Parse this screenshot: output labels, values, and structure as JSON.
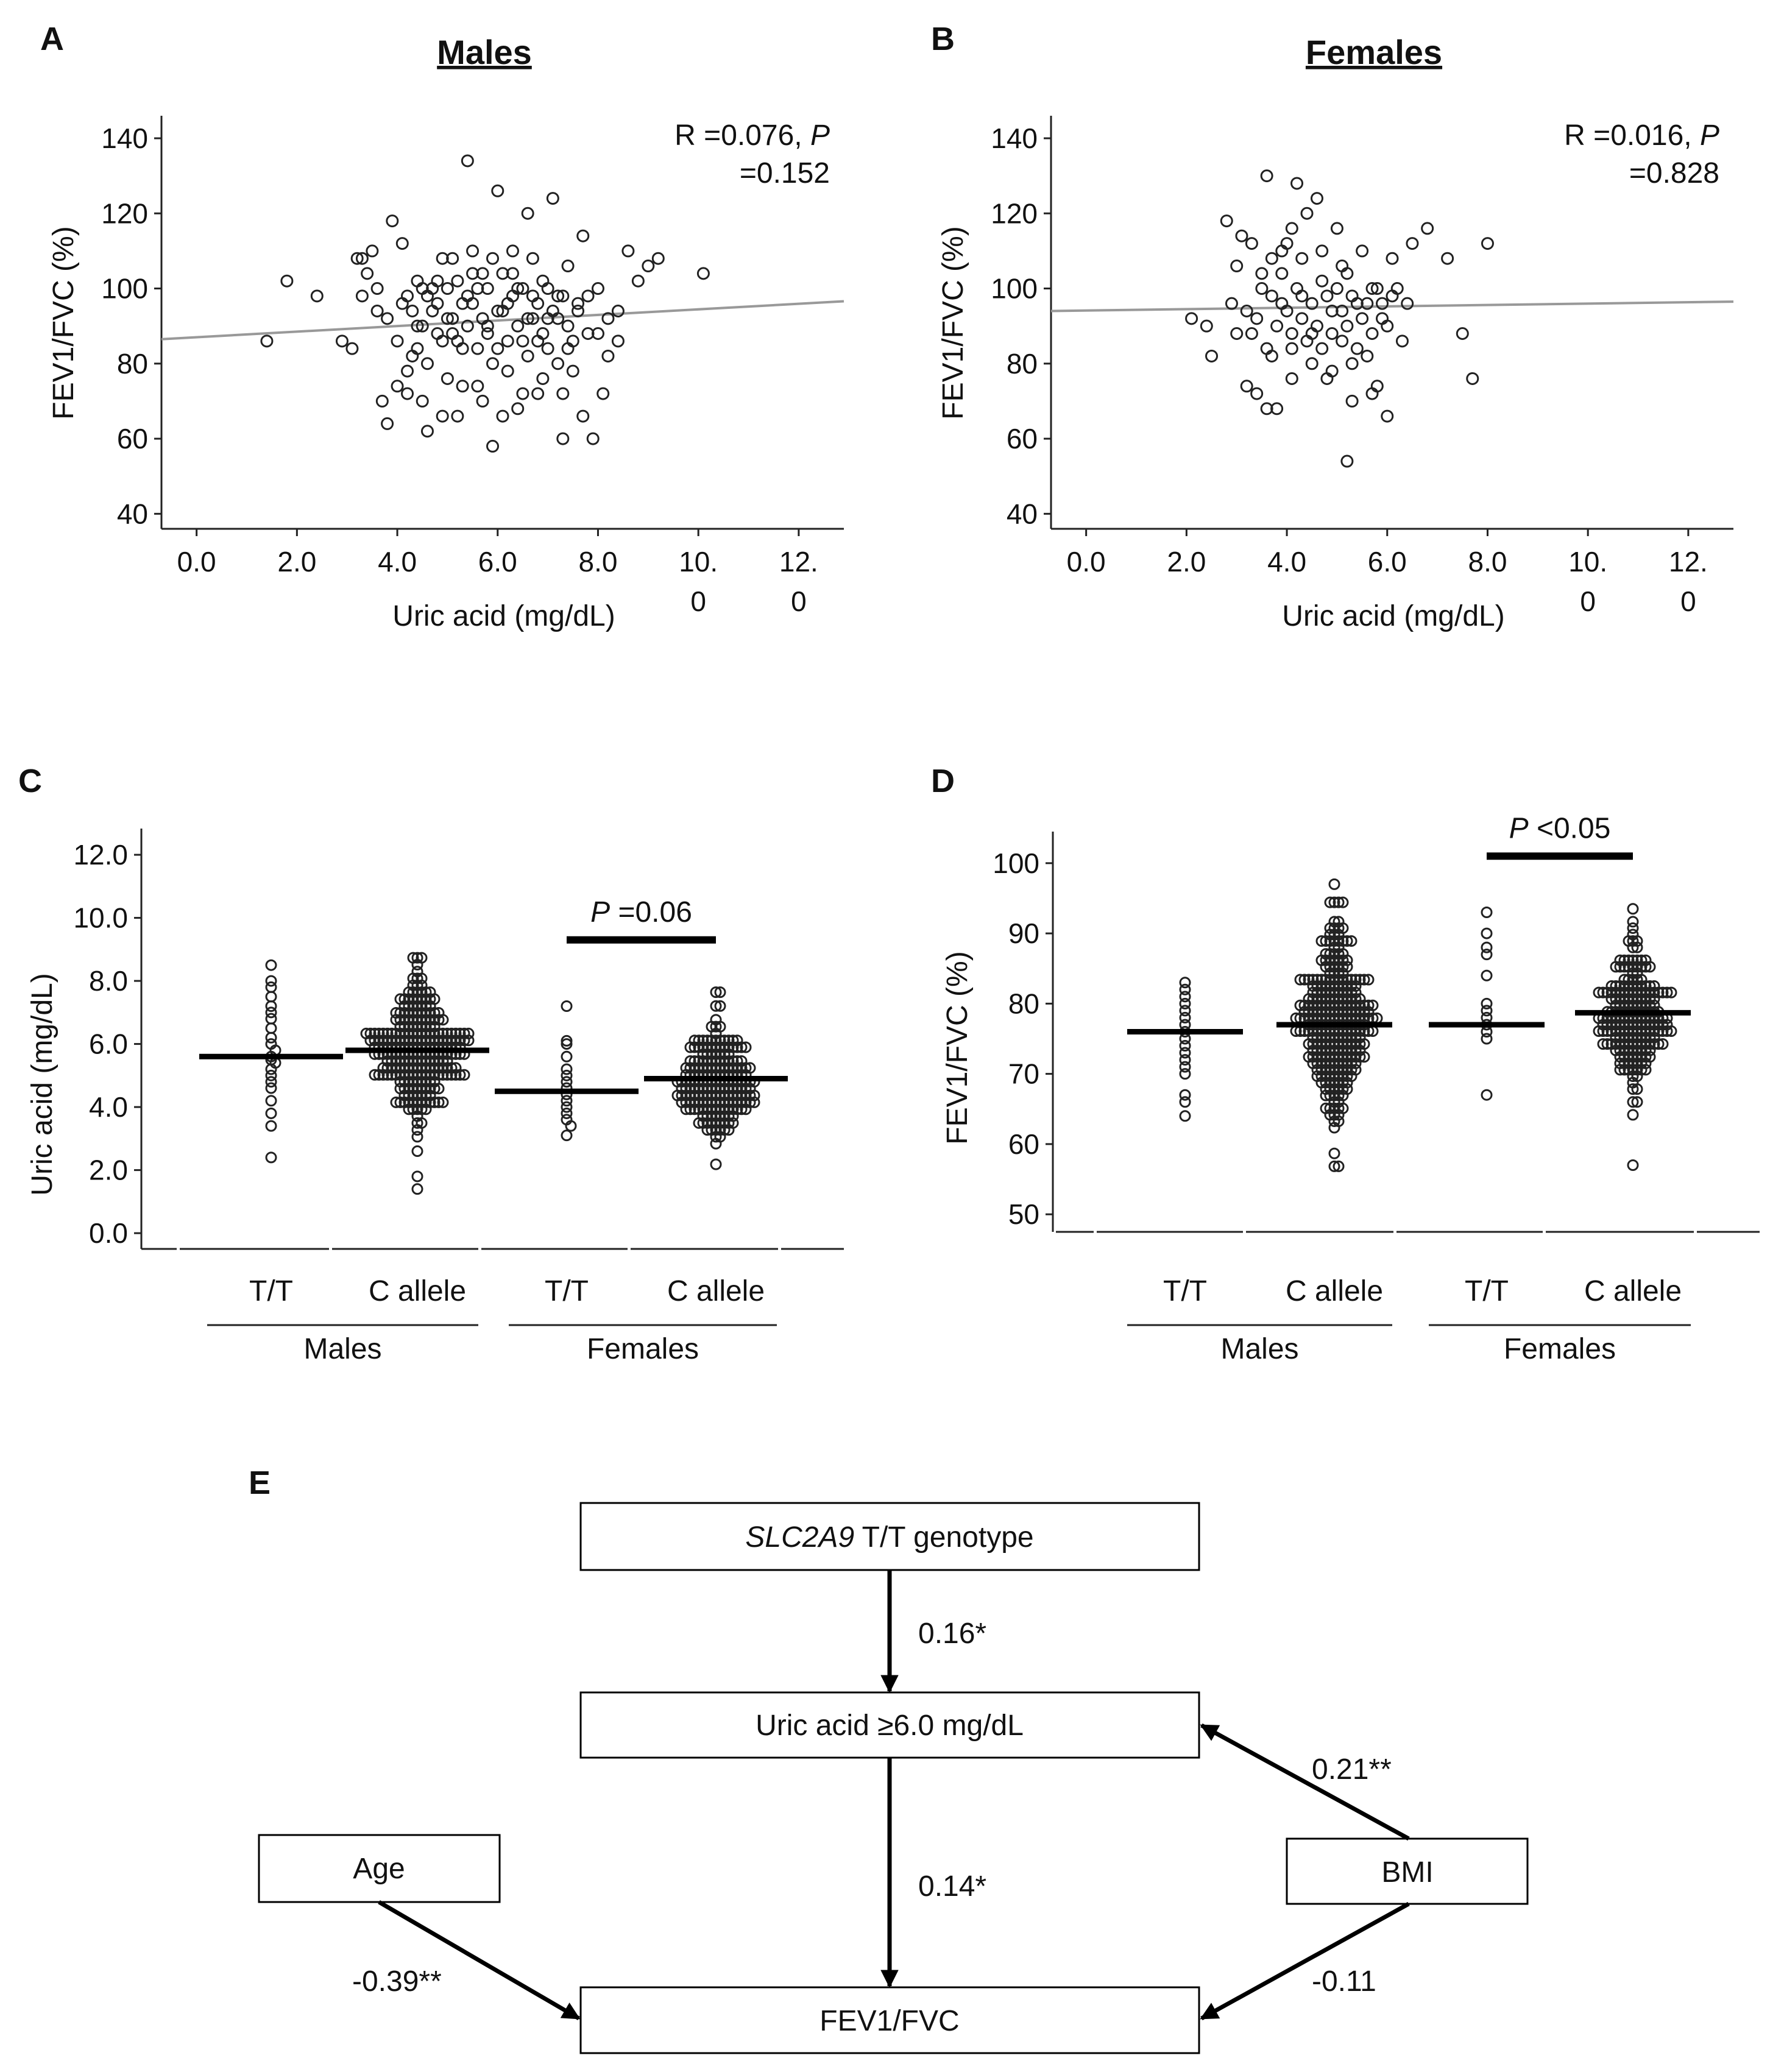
{
  "chart_data": [
    {
      "panel": "A",
      "type": "scatter",
      "title": "Males",
      "xlabel": "Uric acid (mg/dL)",
      "ylabel": "FEV1/FVC (%)",
      "xlim": [
        -0.7,
        12.9
      ],
      "ylim": [
        36,
        146
      ],
      "xticks": [
        {
          "value": 0,
          "label": "0.0"
        },
        {
          "value": 2,
          "label": "2.0"
        },
        {
          "value": 4,
          "label": "4.0"
        },
        {
          "value": 6,
          "label": "6.0"
        },
        {
          "value": 8,
          "label": "8.0"
        },
        {
          "value": 10,
          "label": "10.",
          "label2": "0"
        },
        {
          "value": 12,
          "label": "12.",
          "label2": "0"
        }
      ],
      "yticks": [
        40,
        60,
        80,
        100,
        120,
        140
      ],
      "annotation": {
        "prefix": "R =0.076, ",
        "p": "P",
        "line2": "=0.152"
      },
      "trend": {
        "x1": -0.7,
        "y1": 86.5,
        "x2": 12.9,
        "y2": 96.6
      },
      "points": [
        [
          1.4,
          86
        ],
        [
          1.8,
          102
        ],
        [
          2.4,
          98
        ],
        [
          2.9,
          86
        ],
        [
          3.1,
          84
        ],
        [
          3.3,
          108
        ],
        [
          3.4,
          104
        ],
        [
          3.5,
          110
        ],
        [
          3.6,
          94
        ],
        [
          3.7,
          70
        ],
        [
          3.8,
          64
        ],
        [
          3.9,
          118
        ],
        [
          4.0,
          74
        ],
        [
          4.1,
          112
        ],
        [
          4.2,
          72
        ],
        [
          4.3,
          82
        ],
        [
          4.4,
          102
        ],
        [
          4.5,
          90
        ],
        [
          4.6,
          62
        ],
        [
          4.7,
          100
        ],
        [
          4.8,
          88
        ],
        [
          4.9,
          108
        ],
        [
          5.0,
          76
        ],
        [
          5.1,
          92
        ],
        [
          5.2,
          66
        ],
        [
          5.3,
          84
        ],
        [
          5.4,
          134
        ],
        [
          5.5,
          96
        ],
        [
          5.6,
          74
        ],
        [
          5.7,
          104
        ],
        [
          5.8,
          88
        ],
        [
          5.9,
          58
        ],
        [
          6.0,
          126
        ],
        [
          6.1,
          94
        ],
        [
          6.2,
          78
        ],
        [
          6.3,
          110
        ],
        [
          6.4,
          68
        ],
        [
          6.5,
          86
        ],
        [
          6.6,
          120
        ],
        [
          6.7,
          98
        ],
        [
          6.8,
          72
        ],
        [
          6.9,
          102
        ],
        [
          7.0,
          84
        ],
        [
          7.1,
          124
        ],
        [
          7.2,
          92
        ],
        [
          7.3,
          60
        ],
        [
          7.4,
          106
        ],
        [
          7.5,
          78
        ],
        [
          7.6,
          96
        ],
        [
          7.7,
          114
        ],
        [
          7.8,
          88
        ],
        [
          7.9,
          60
        ],
        [
          8.0,
          100
        ],
        [
          8.2,
          82
        ],
        [
          8.4,
          94
        ],
        [
          8.6,
          110
        ],
        [
          8.8,
          102
        ],
        [
          9.0,
          106
        ],
        [
          9.2,
          108
        ],
        [
          10.1,
          104
        ],
        [
          3.2,
          108
        ],
        [
          3.3,
          98
        ],
        [
          3.6,
          100
        ],
        [
          3.8,
          92
        ],
        [
          4.0,
          86
        ],
        [
          4.1,
          96
        ],
        [
          4.3,
          94
        ],
        [
          4.4,
          90
        ],
        [
          4.5,
          100
        ],
        [
          4.6,
          80
        ],
        [
          4.7,
          94
        ],
        [
          4.8,
          96
        ],
        [
          4.9,
          86
        ],
        [
          5.0,
          100
        ],
        [
          5.1,
          88
        ],
        [
          5.2,
          102
        ],
        [
          5.3,
          96
        ],
        [
          5.4,
          90
        ],
        [
          5.5,
          104
        ],
        [
          5.6,
          84
        ],
        [
          5.7,
          92
        ],
        [
          5.8,
          100
        ],
        [
          5.9,
          80
        ],
        [
          6.0,
          94
        ],
        [
          6.1,
          104
        ],
        [
          6.2,
          86
        ],
        [
          6.3,
          98
        ],
        [
          6.4,
          90
        ],
        [
          6.5,
          100
        ],
        [
          6.6,
          82
        ],
        [
          6.7,
          92
        ],
        [
          6.8,
          96
        ],
        [
          6.9,
          88
        ],
        [
          7.0,
          100
        ],
        [
          7.1,
          94
        ],
        [
          7.2,
          80
        ],
        [
          7.3,
          98
        ],
        [
          7.4,
          90
        ],
        [
          7.5,
          86
        ],
        [
          7.6,
          94
        ],
        [
          7.8,
          98
        ],
        [
          8.0,
          88
        ],
        [
          8.2,
          92
        ],
        [
          8.4,
          86
        ],
        [
          4.2,
          98
        ],
        [
          4.4,
          84
        ],
        [
          4.6,
          98
        ],
        [
          4.8,
          102
        ],
        [
          5.0,
          92
        ],
        [
          5.2,
          86
        ],
        [
          5.4,
          98
        ],
        [
          5.6,
          100
        ],
        [
          5.8,
          90
        ],
        [
          6.0,
          84
        ],
        [
          6.2,
          96
        ],
        [
          6.4,
          100
        ],
        [
          6.6,
          92
        ],
        [
          6.8,
          86
        ],
        [
          7.0,
          92
        ],
        [
          7.2,
          98
        ],
        [
          7.4,
          84
        ],
        [
          5.1,
          108
        ],
        [
          5.5,
          110
        ],
        [
          5.9,
          108
        ],
        [
          6.3,
          104
        ],
        [
          6.7,
          108
        ],
        [
          5.3,
          74
        ],
        [
          5.7,
          70
        ],
        [
          6.1,
          66
        ],
        [
          6.5,
          72
        ],
        [
          6.9,
          76
        ],
        [
          7.3,
          72
        ],
        [
          4.9,
          66
        ],
        [
          4.5,
          70
        ],
        [
          4.2,
          78
        ],
        [
          7.7,
          66
        ],
        [
          8.1,
          72
        ]
      ]
    },
    {
      "panel": "B",
      "type": "scatter",
      "title": "Females",
      "xlabel": "Uric acid (mg/dL)",
      "ylabel": "FEV1/FVC (%)",
      "xlim": [
        -0.7,
        12.9
      ],
      "ylim": [
        36,
        146
      ],
      "xticks": [
        {
          "value": 0,
          "label": "0.0"
        },
        {
          "value": 2,
          "label": "2.0"
        },
        {
          "value": 4,
          "label": "4.0"
        },
        {
          "value": 6,
          "label": "6.0"
        },
        {
          "value": 8,
          "label": "8.0"
        },
        {
          "value": 10,
          "label": "10.",
          "label2": "0"
        },
        {
          "value": 12,
          "label": "12.",
          "label2": "0"
        }
      ],
      "yticks": [
        40,
        60,
        80,
        100,
        120,
        140
      ],
      "annotation": {
        "prefix": "R =0.016, ",
        "p": "P",
        "line2": "=0.828"
      },
      "trend": {
        "x1": -0.7,
        "y1": 94.0,
        "x2": 12.9,
        "y2": 96.5
      },
      "points": [
        [
          2.1,
          92
        ],
        [
          2.4,
          90
        ],
        [
          2.5,
          82
        ],
        [
          2.8,
          118
        ],
        [
          2.9,
          96
        ],
        [
          3.0,
          106
        ],
        [
          3.1,
          114
        ],
        [
          3.2,
          74
        ],
        [
          3.3,
          88
        ],
        [
          3.4,
          72
        ],
        [
          3.5,
          100
        ],
        [
          3.6,
          130
        ],
        [
          3.7,
          108
        ],
        [
          3.8,
          68
        ],
        [
          3.9,
          96
        ],
        [
          4.0,
          112
        ],
        [
          4.1,
          84
        ],
        [
          4.2,
          128
        ],
        [
          4.3,
          98
        ],
        [
          4.4,
          120
        ],
        [
          4.5,
          88
        ],
        [
          4.6,
          124
        ],
        [
          4.7,
          102
        ],
        [
          4.8,
          76
        ],
        [
          4.9,
          94
        ],
        [
          5.0,
          116
        ],
        [
          5.1,
          86
        ],
        [
          5.2,
          104
        ],
        [
          5.3,
          70
        ],
        [
          5.4,
          96
        ],
        [
          5.5,
          110
        ],
        [
          5.6,
          82
        ],
        [
          5.7,
          100
        ],
        [
          5.8,
          74
        ],
        [
          5.9,
          92
        ],
        [
          6.0,
          66
        ],
        [
          6.1,
          98
        ],
        [
          6.3,
          86
        ],
        [
          6.5,
          112
        ],
        [
          6.8,
          116
        ],
        [
          7.2,
          108
        ],
        [
          7.5,
          88
        ],
        [
          7.7,
          76
        ],
        [
          8.0,
          112
        ],
        [
          5.2,
          54
        ],
        [
          3.0,
          88
        ],
        [
          3.2,
          94
        ],
        [
          3.4,
          92
        ],
        [
          3.6,
          84
        ],
        [
          3.7,
          98
        ],
        [
          3.8,
          90
        ],
        [
          3.9,
          104
        ],
        [
          4.0,
          94
        ],
        [
          4.1,
          88
        ],
        [
          4.2,
          100
        ],
        [
          4.3,
          92
        ],
        [
          4.4,
          86
        ],
        [
          4.5,
          96
        ],
        [
          4.6,
          90
        ],
        [
          4.7,
          84
        ],
        [
          4.8,
          98
        ],
        [
          4.9,
          88
        ],
        [
          5.0,
          100
        ],
        [
          5.1,
          94
        ],
        [
          5.2,
          90
        ],
        [
          5.3,
          98
        ],
        [
          5.4,
          84
        ],
        [
          5.5,
          92
        ],
        [
          5.6,
          96
        ],
        [
          5.7,
          88
        ],
        [
          5.8,
          100
        ],
        [
          5.9,
          96
        ],
        [
          6.0,
          90
        ],
        [
          6.2,
          100
        ],
        [
          6.4,
          96
        ],
        [
          3.5,
          104
        ],
        [
          3.9,
          110
        ],
        [
          4.3,
          108
        ],
        [
          4.7,
          110
        ],
        [
          5.1,
          106
        ],
        [
          3.3,
          112
        ],
        [
          4.1,
          116
        ],
        [
          4.5,
          80
        ],
        [
          4.9,
          78
        ],
        [
          5.3,
          80
        ],
        [
          3.7,
          82
        ],
        [
          4.1,
          76
        ],
        [
          5.7,
          72
        ],
        [
          3.6,
          68
        ],
        [
          6.1,
          108
        ]
      ]
    },
    {
      "panel": "C",
      "type": "scatter",
      "xlabel": "",
      "ylabel": "Uric acid (mg/dL)",
      "ylim": [
        -0.5,
        12.6
      ],
      "yticks": [
        "0.0",
        "2.0",
        "4.0",
        "6.0",
        "8.0",
        "10.0",
        "12.0"
      ],
      "categories": [
        "T/T",
        "C allele",
        "T/T",
        "C allele"
      ],
      "groups": [
        "Males",
        "Females"
      ],
      "means": [
        5.6,
        5.8,
        4.5,
        4.9
      ],
      "significance": {
        "between": [
          2,
          3
        ],
        "y": 9.3,
        "p": "P",
        "text": " =0.06"
      },
      "series": [
        {
          "category": 0,
          "values": [
            8.5,
            8.0,
            7.8,
            7.5,
            7.2,
            7.0,
            6.8,
            6.5,
            6.2,
            6.0,
            5.8,
            5.6,
            5.5,
            5.4,
            5.2,
            5.0,
            4.8,
            4.6,
            4.2,
            3.8,
            3.4,
            2.4
          ],
          "spread": 16
        },
        {
          "category": 1,
          "min": 2.8,
          "max": 10.0,
          "center": 5.9,
          "sd": 1.05,
          "n": 260,
          "outliers": [
            1.4,
            1.8,
            2.6
          ],
          "spread": 34
        },
        {
          "category": 2,
          "values": [
            7.2,
            6.1,
            6.0,
            5.6,
            5.2,
            5.0,
            4.8,
            4.6,
            4.4,
            4.2,
            4.0,
            3.8,
            3.6,
            3.4,
            3.1
          ],
          "spread": 14
        },
        {
          "category": 3,
          "min": 2.1,
          "max": 8.0,
          "center": 4.9,
          "sd": 0.95,
          "n": 200,
          "outliers": [],
          "spread": 30
        }
      ]
    },
    {
      "panel": "D",
      "type": "scatter",
      "xlabel": "",
      "ylabel": "FEV1/FVC (%)",
      "ylim": [
        47.5,
        102.5
      ],
      "yticks": [
        "50",
        "60",
        "70",
        "80",
        "90",
        "100"
      ],
      "categories": [
        "T/T",
        "C allele",
        "T/T",
        "C allele"
      ],
      "groups": [
        "Males",
        "Females"
      ],
      "means": [
        76,
        77,
        77,
        78.7
      ],
      "significance": {
        "between": [
          2,
          3
        ],
        "y": 101,
        "p": "P",
        "text": " <0.05"
      },
      "series": [
        {
          "category": 0,
          "values": [
            83,
            82,
            81,
            80,
            79,
            78,
            77,
            76,
            75,
            74,
            73,
            72,
            71,
            70,
            67,
            66,
            64
          ],
          "spread": 16
        },
        {
          "category": 1,
          "min": 57,
          "max": 94,
          "center": 77,
          "sd": 6.5,
          "n": 300,
          "outliers": [
            97
          ],
          "spread": 34
        },
        {
          "category": 2,
          "values": [
            93,
            90,
            88,
            87,
            84,
            80,
            79,
            78,
            77,
            76,
            75,
            67
          ],
          "spread": 14
        },
        {
          "category": 3,
          "min": 63,
          "max": 95,
          "center": 78.5,
          "sd": 5.5,
          "n": 210,
          "outliers": [
            57
          ],
          "spread": 30
        }
      ]
    }
  ],
  "diagram": {
    "panel": "E",
    "nodes": {
      "genotype": {
        "italic": "SLC2A9",
        "text": " T/T genotype"
      },
      "uric": {
        "text": "Uric acid ≥6.0 mg/dL"
      },
      "age": {
        "text": "Age"
      },
      "bmi": {
        "text": "BMI"
      },
      "fev": {
        "text": "FEV1/FVC"
      }
    },
    "edges": [
      {
        "from": "genotype",
        "to": "uric",
        "label": "0.16*"
      },
      {
        "from": "uric",
        "to": "fev",
        "label": "0.14*"
      },
      {
        "from": "bmi",
        "to": "uric",
        "label": "0.21**"
      },
      {
        "from": "age",
        "to": "fev",
        "label": "-0.39**"
      },
      {
        "from": "bmi",
        "to": "fev",
        "label": "-0.11"
      }
    ]
  }
}
